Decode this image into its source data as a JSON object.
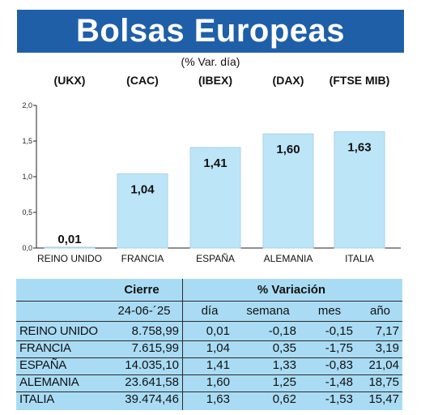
{
  "title": "Bolsas Europeas",
  "subtitle": "(% Var. día)",
  "chart_data": {
    "type": "bar",
    "codes": [
      "(UKX)",
      "(CAC)",
      "(IBEX)",
      "(DAX)",
      "(FTSE MIB)"
    ],
    "categories": [
      "REINO UNIDO",
      "FRANCIA",
      "ESPAÑA",
      "ALEMANIA",
      "ITALIA"
    ],
    "values": [
      0.01,
      1.04,
      1.41,
      1.6,
      1.63
    ],
    "value_labels": [
      "0,01",
      "1,04",
      "1,41",
      "1,60",
      "1,63"
    ],
    "ylim": [
      0,
      2.0
    ],
    "yticks": [
      0.0,
      0.5,
      1.0,
      1.5,
      2.0
    ],
    "ytick_labels": [
      "0,0",
      "0,5",
      "1,0",
      "1,5",
      "2,0"
    ],
    "bar_color": "#bde5f8",
    "bar_stroke": "#a9d2e6",
    "grid": false
  },
  "table": {
    "header_cierre": "Cierre",
    "header_variacion": "% Variación",
    "date": "24-06-´25",
    "col_dia": "día",
    "col_semana": "semana",
    "col_mes": "mes",
    "col_ano": "año",
    "rows": [
      {
        "pais": "REINO UNIDO",
        "cierre": "8.758,99",
        "dia": "0,01",
        "semana": "-0,18",
        "mes": "-0,15",
        "ano": "7,17"
      },
      {
        "pais": "FRANCIA",
        "cierre": "7.615,99",
        "dia": "1,04",
        "semana": "0,35",
        "mes": "-1,75",
        "ano": "3,19"
      },
      {
        "pais": "ESPAÑA",
        "cierre": "14.035,10",
        "dia": "1,41",
        "semana": "1,33",
        "mes": "-0,83",
        "ano": "21,04"
      },
      {
        "pais": "ALEMANIA",
        "cierre": "23.641,58",
        "dia": "1,60",
        "semana": "1,25",
        "mes": "-1,48",
        "ano": "18,75"
      },
      {
        "pais": "ITALIA",
        "cierre": "39.474,46",
        "dia": "1,63",
        "semana": "0,62",
        "mes": "-1,53",
        "ano": "15,47"
      }
    ]
  },
  "colors": {
    "banner": "#1f5fa8",
    "table_background": "#a9dcf4"
  }
}
